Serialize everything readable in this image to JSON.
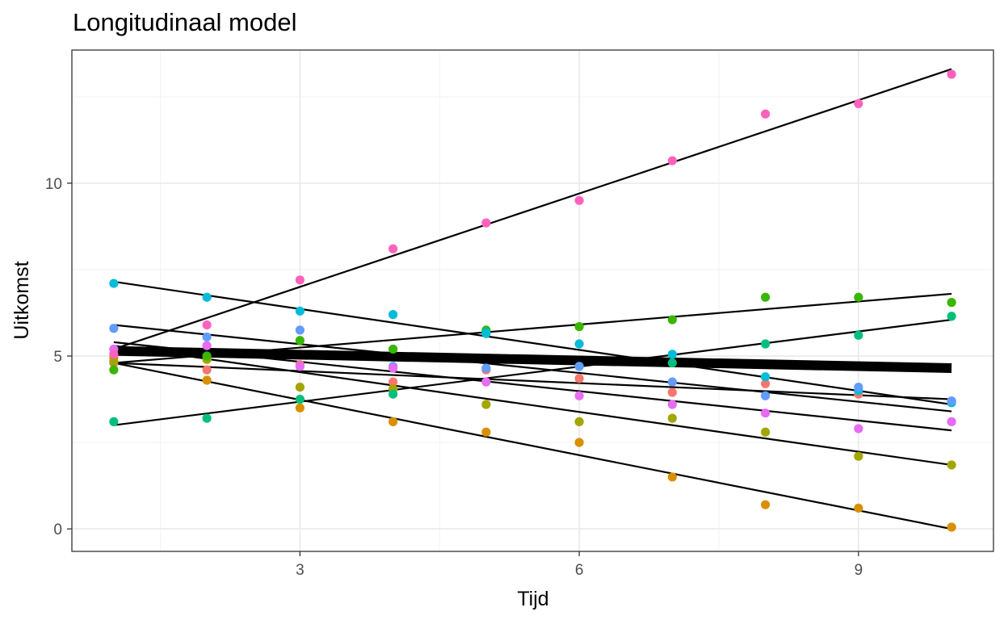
{
  "chart_data": {
    "type": "scatter",
    "title": "Longitudinaal model",
    "xlabel": "Tijd",
    "ylabel": "Uitkomst",
    "xlim": [
      0.55,
      10.45
    ],
    "ylim": [
      -0.65,
      13.85
    ],
    "x_ticks": [
      3,
      6,
      9
    ],
    "y_ticks": [
      0,
      5,
      10
    ],
    "x_tick_labels": [
      "3",
      "6",
      "9"
    ],
    "y_tick_labels": [
      "0",
      "5",
      "10"
    ],
    "grid": true,
    "legend": "none",
    "x": [
      1,
      2,
      3,
      4,
      5,
      6,
      7,
      8,
      9,
      10
    ],
    "series": [
      {
        "color": "#F8766D",
        "values": [
          4.8,
          4.6,
          4.75,
          4.25,
          4.6,
          4.35,
          3.95,
          4.2,
          3.9,
          3.7
        ]
      },
      {
        "color": "#D89000",
        "values": [
          4.95,
          4.3,
          3.5,
          3.1,
          2.8,
          2.5,
          1.5,
          0.7,
          0.6,
          0.05
        ]
      },
      {
        "color": "#A3A500",
        "values": [
          4.85,
          4.9,
          4.1,
          4.05,
          3.6,
          3.1,
          3.2,
          2.8,
          2.1,
          1.85
        ]
      },
      {
        "color": "#39B600",
        "values": [
          4.6,
          5.0,
          5.45,
          5.2,
          5.75,
          5.85,
          6.05,
          6.7,
          6.7,
          6.55
        ]
      },
      {
        "color": "#00BF7D",
        "values": [
          3.1,
          3.2,
          3.75,
          3.9,
          5.7,
          4.7,
          4.8,
          5.35,
          5.6,
          6.15
        ]
      },
      {
        "color": "#00BCD8",
        "values": [
          7.1,
          6.7,
          6.3,
          6.2,
          5.65,
          5.35,
          5.05,
          4.4,
          4.0,
          3.65
        ]
      },
      {
        "color": "#619CFF",
        "values": [
          5.8,
          5.55,
          5.75,
          4.7,
          4.65,
          4.7,
          4.25,
          3.85,
          4.1,
          3.7
        ]
      },
      {
        "color": "#E76BF3",
        "values": [
          5.2,
          5.3,
          4.7,
          4.65,
          4.25,
          3.85,
          3.6,
          3.35,
          2.9,
          3.1
        ]
      },
      {
        "color": "#FF62BC",
        "values": [
          5.05,
          5.9,
          7.2,
          8.1,
          8.85,
          9.5,
          10.65,
          12.0,
          12.3,
          13.15
        ]
      }
    ],
    "fit_lines": [
      {
        "y1": 5.2,
        "y10": 13.3
      },
      {
        "y1": 4.8,
        "y10": 0.0
      },
      {
        "y1": 5.3,
        "y10": 1.85
      },
      {
        "y1": 4.8,
        "y10": 6.8
      },
      {
        "y1": 3.0,
        "y10": 6.05
      },
      {
        "y1": 7.15,
        "y10": 3.6
      },
      {
        "y1": 5.9,
        "y10": 3.4
      },
      {
        "y1": 5.4,
        "y10": 2.85
      },
      {
        "y1": 4.8,
        "y10": 3.75
      }
    ],
    "mean_line": {
      "y1": 5.15,
      "y10": 4.65
    }
  }
}
